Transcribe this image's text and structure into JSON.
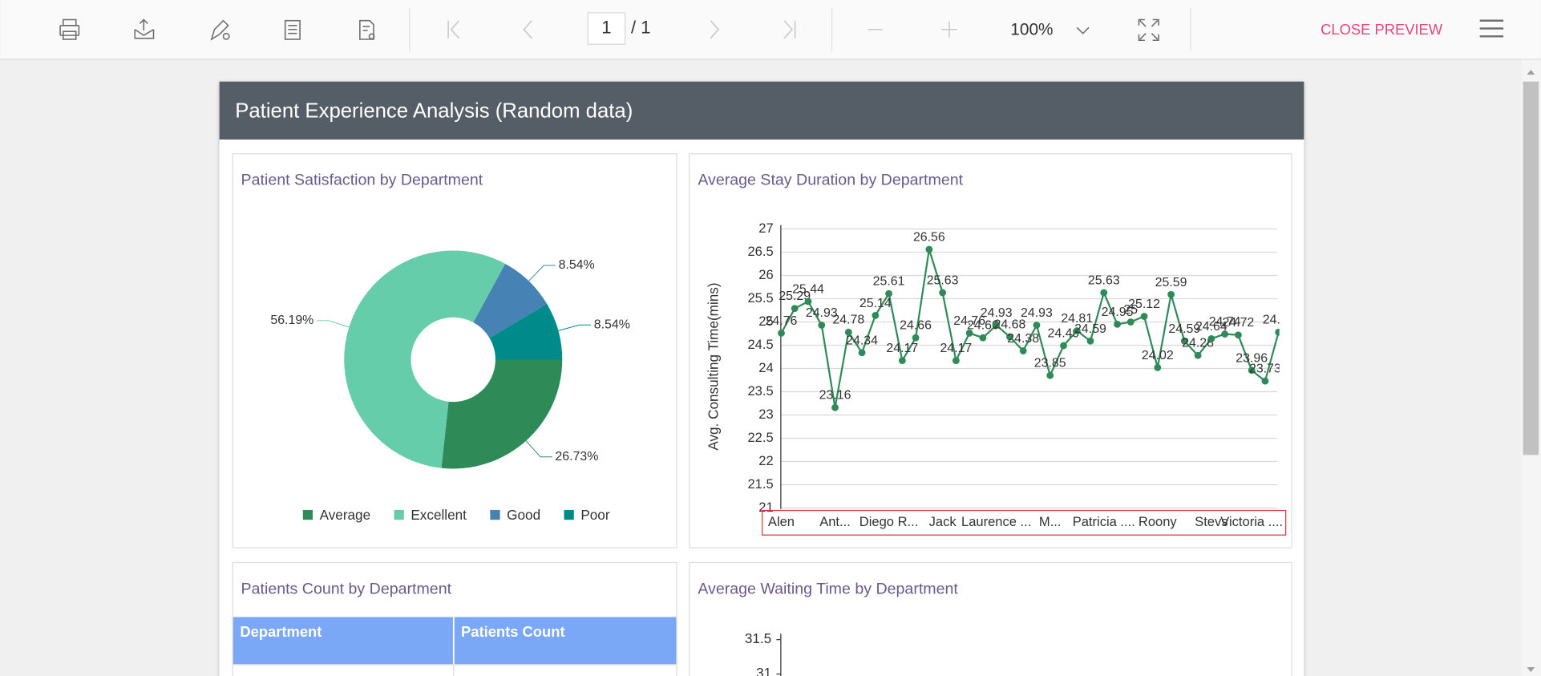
{
  "toolbar": {
    "page": "1",
    "page_total": "/ 1",
    "zoom": "100%",
    "close": "CLOSE PREVIEW"
  },
  "report_title": "Patient Experience Analysis (Random data)",
  "table": {
    "title": "Patients Count by Department",
    "columns": [
      "Department",
      "Patients Count"
    ]
  },
  "chart_data": [
    {
      "type": "pie",
      "title": "Patient Satisfaction by Department",
      "categories": [
        "Average",
        "Excellent",
        "Good",
        "Poor"
      ],
      "values": [
        26.73,
        56.19,
        8.54,
        8.54
      ],
      "value_labels": [
        "26.73%",
        "56.19%",
        "8.54%",
        "8.54%"
      ],
      "colors": [
        "#2e8b57",
        "#66cdaa",
        "#4682b4",
        "#008b8b"
      ],
      "legend": "bottom"
    },
    {
      "type": "line",
      "title": "Average Stay Duration by Department",
      "y_label": "Avg. Consulting Time(mins)",
      "categories": [
        "Alen",
        null,
        null,
        null,
        "Ant...",
        null,
        null,
        null,
        "Diego R...",
        null,
        null,
        null,
        "Jack",
        null,
        null,
        null,
        "Laurence ...",
        null,
        null,
        null,
        "M...",
        null,
        null,
        null,
        "Patricia ....",
        null,
        null,
        null,
        "Roony",
        null,
        null,
        null,
        "Stevs",
        null,
        null,
        "Victoria ....",
        null,
        null
      ],
      "values": [
        24.76,
        25.29,
        25.44,
        24.93,
        23.16,
        24.78,
        24.34,
        25.14,
        25.61,
        24.17,
        24.66,
        26.56,
        25.63,
        24.17,
        24.76,
        24.66,
        24.93,
        24.68,
        24.38,
        24.93,
        23.85,
        24.49,
        24.81,
        24.59,
        25.63,
        24.95,
        25,
        25.12,
        24.02,
        25.59,
        24.59,
        24.28,
        24.64,
        24.74,
        24.72,
        23.96,
        23.73,
        24.78
      ],
      "color": "#2e8b57",
      "ylim": [
        21,
        27
      ],
      "yticks": [
        21,
        21.5,
        22,
        22.5,
        23,
        23.5,
        24,
        24.5,
        25,
        25.5,
        26,
        26.5,
        27
      ],
      "grid": true
    },
    {
      "type": "line",
      "title": "Average Waiting Time by Department",
      "yticks": [
        31,
        31.5
      ]
    }
  ]
}
